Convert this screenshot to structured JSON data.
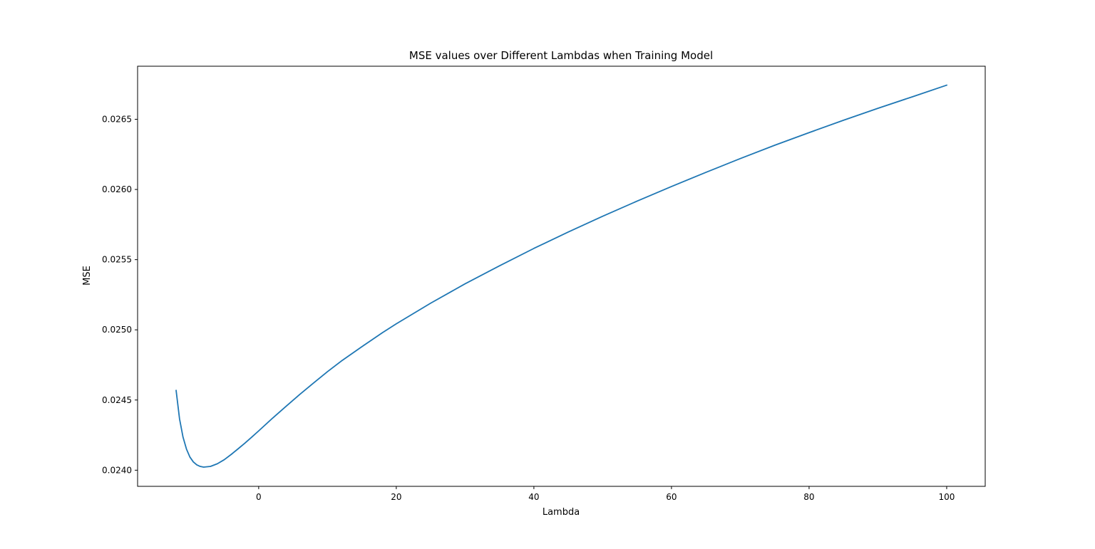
{
  "chart_data": {
    "type": "line",
    "title": "MSE values over Different Lambdas when Training Model",
    "xlabel": "Lambda",
    "ylabel": "MSE",
    "xlim": [
      -17.6,
      105.6
    ],
    "ylim": [
      0.023885,
      0.026878
    ],
    "xticks": [
      0,
      20,
      40,
      60,
      80,
      100
    ],
    "xtick_labels": [
      "0",
      "20",
      "40",
      "60",
      "80",
      "100"
    ],
    "yticks": [
      0.024,
      0.0245,
      0.025,
      0.0255,
      0.026,
      0.0265
    ],
    "ytick_labels": [
      "0.0240",
      "0.0245",
      "0.0250",
      "0.0255",
      "0.0260",
      "0.0265"
    ],
    "grid": false,
    "legend": "none",
    "series": [
      {
        "name": "MSE",
        "color": "#1f77b4",
        "x": [
          -12,
          -11.5,
          -11,
          -10.5,
          -10,
          -9.5,
          -9,
          -8.5,
          -8,
          -7,
          -6,
          -5,
          -4,
          -3,
          -2,
          -1,
          0,
          2,
          4,
          6,
          8,
          10,
          12,
          15,
          18,
          20,
          25,
          30,
          35,
          40,
          45,
          50,
          55,
          60,
          65,
          70,
          75,
          80,
          85,
          90,
          95,
          100
        ],
        "y": [
          0.024568,
          0.024365,
          0.024236,
          0.024151,
          0.024094,
          0.024059,
          0.024038,
          0.024027,
          0.024022,
          0.024027,
          0.024046,
          0.024075,
          0.024112,
          0.024152,
          0.024193,
          0.024236,
          0.02428,
          0.02437,
          0.024456,
          0.024541,
          0.024622,
          0.024702,
          0.024777,
          0.02488,
          0.02498,
          0.025043,
          0.02519,
          0.025328,
          0.025456,
          0.02558,
          0.025697,
          0.025809,
          0.025917,
          0.026021,
          0.026122,
          0.02622,
          0.026315,
          0.026405,
          0.026493,
          0.026578,
          0.02666,
          0.026743
        ]
      }
    ]
  }
}
